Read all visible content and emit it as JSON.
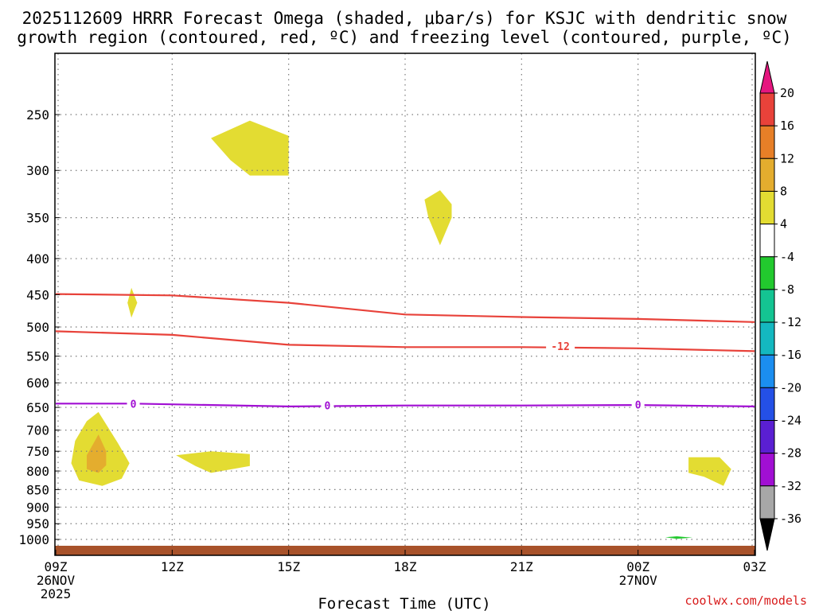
{
  "chart_data": {
    "type": "contour",
    "title_line1": "2025112609 HRRR Forecast Omega (shaded, μbar/s) for KSJC with dendritic snow",
    "title_line2": "growth region (contoured, red, ºC) and freezing level (contoured, purple, ºC)",
    "xlabel": "Forecast Time (UTC)",
    "credit": "coolwx.com/models",
    "x_range_hours": [
      0,
      18
    ],
    "x_ticks": [
      {
        "h": 0,
        "label": "09Z",
        "sub1": "26NOV",
        "sub2": "2025"
      },
      {
        "h": 3,
        "label": "12Z"
      },
      {
        "h": 6,
        "label": "15Z"
      },
      {
        "h": 9,
        "label": "18Z"
      },
      {
        "h": 12,
        "label": "21Z"
      },
      {
        "h": 15,
        "label": "00Z",
        "sub1": "27NOV"
      },
      {
        "h": 18,
        "label": "03Z"
      }
    ],
    "y_ticks_hpa": [
      250,
      300,
      350,
      400,
      450,
      500,
      550,
      600,
      650,
      700,
      750,
      800,
      850,
      900,
      950,
      1000
    ],
    "contours": [
      {
        "name": "dgz-upper",
        "color": "#e8423a",
        "label": "",
        "points": [
          [
            0,
            449
          ],
          [
            3,
            451
          ],
          [
            6,
            462
          ],
          [
            9,
            480
          ],
          [
            12,
            484
          ],
          [
            15,
            487
          ],
          [
            18,
            492
          ]
        ]
      },
      {
        "name": "dgz-lower",
        "color": "#e8423a",
        "label": "-12",
        "label_at": [
          13,
          532
        ],
        "points": [
          [
            0,
            507
          ],
          [
            3,
            513
          ],
          [
            6,
            530
          ],
          [
            9,
            534
          ],
          [
            12,
            534
          ],
          [
            15,
            536
          ],
          [
            18,
            541
          ]
        ]
      },
      {
        "name": "freezing-level",
        "color": "#a10fd3",
        "label": "0",
        "label_positions": [
          [
            2,
            642
          ],
          [
            7,
            646
          ],
          [
            15,
            644
          ]
        ],
        "points": [
          [
            0,
            642
          ],
          [
            2,
            642
          ],
          [
            6,
            648
          ],
          [
            9,
            646
          ],
          [
            12,
            646
          ],
          [
            15,
            645
          ],
          [
            18,
            648
          ]
        ]
      }
    ],
    "shaded_regions": [
      {
        "name": "omega-4-8",
        "color": "#e3dc32",
        "points": [
          [
            1.1,
            660
          ],
          [
            1.6,
            730
          ],
          [
            1.9,
            780
          ],
          [
            1.7,
            820
          ],
          [
            1.2,
            840
          ],
          [
            0.6,
            825
          ],
          [
            0.4,
            780
          ],
          [
            0.5,
            725
          ],
          [
            0.8,
            680
          ]
        ]
      },
      {
        "name": "omega-8-12",
        "color": "#e4ad2e",
        "points": [
          [
            1.1,
            710
          ],
          [
            1.3,
            750
          ],
          [
            1.3,
            785
          ],
          [
            1.1,
            805
          ],
          [
            0.8,
            795
          ],
          [
            0.8,
            760
          ],
          [
            0.95,
            735
          ]
        ]
      },
      {
        "name": "omega-4-8",
        "color": "#e3dc32",
        "points": [
          [
            1.95,
            440
          ],
          [
            2.1,
            462
          ],
          [
            1.95,
            485
          ],
          [
            1.85,
            462
          ]
        ]
      },
      {
        "name": "omega-4-8",
        "color": "#e3dc32",
        "points": [
          [
            4.0,
            270
          ],
          [
            5.0,
            255
          ],
          [
            6.0,
            268
          ],
          [
            6.0,
            305
          ],
          [
            5.0,
            305
          ],
          [
            4.5,
            290
          ]
        ]
      },
      {
        "name": "omega-4-8",
        "color": "#e3dc32",
        "points": [
          [
            3.1,
            760
          ],
          [
            4.0,
            750
          ],
          [
            5.0,
            757
          ],
          [
            5.0,
            787
          ],
          [
            4.0,
            805
          ],
          [
            3.6,
            787
          ]
        ]
      },
      {
        "name": "omega-4-8",
        "color": "#e3dc32",
        "points": [
          [
            9.5,
            330
          ],
          [
            9.9,
            320
          ],
          [
            10.2,
            335
          ],
          [
            10.2,
            350
          ],
          [
            9.9,
            383
          ],
          [
            9.6,
            350
          ]
        ]
      },
      {
        "name": "omega-4-8",
        "color": "#e3dc32",
        "points": [
          [
            16.3,
            765
          ],
          [
            17.1,
            765
          ],
          [
            17.4,
            795
          ],
          [
            17.2,
            840
          ],
          [
            16.7,
            815
          ],
          [
            16.3,
            805
          ]
        ]
      },
      {
        "name": "omega-neg4-8",
        "color": "#22c92e",
        "points": [
          [
            15.7,
            993
          ],
          [
            16.0,
            990
          ],
          [
            16.4,
            994
          ],
          [
            16.0,
            998
          ]
        ]
      }
    ],
    "terrain_color": "#a8522a",
    "colorbar": {
      "labels": [
        "20",
        "16",
        "12",
        "8",
        "4",
        "-4",
        "-8",
        "-12",
        "-16",
        "-20",
        "-24",
        "-28",
        "-32",
        "-36"
      ],
      "colors": [
        "#e5167f",
        "#e8423a",
        "#e77f27",
        "#e4ad2e",
        "#e3dc32",
        "#ffffff",
        "#22c92e",
        "#14c492",
        "#14b8c0",
        "#1b8ef0",
        "#2450e6",
        "#5a1fd2",
        "#a10fd3",
        "#a7a7a7",
        "#000000"
      ]
    }
  }
}
